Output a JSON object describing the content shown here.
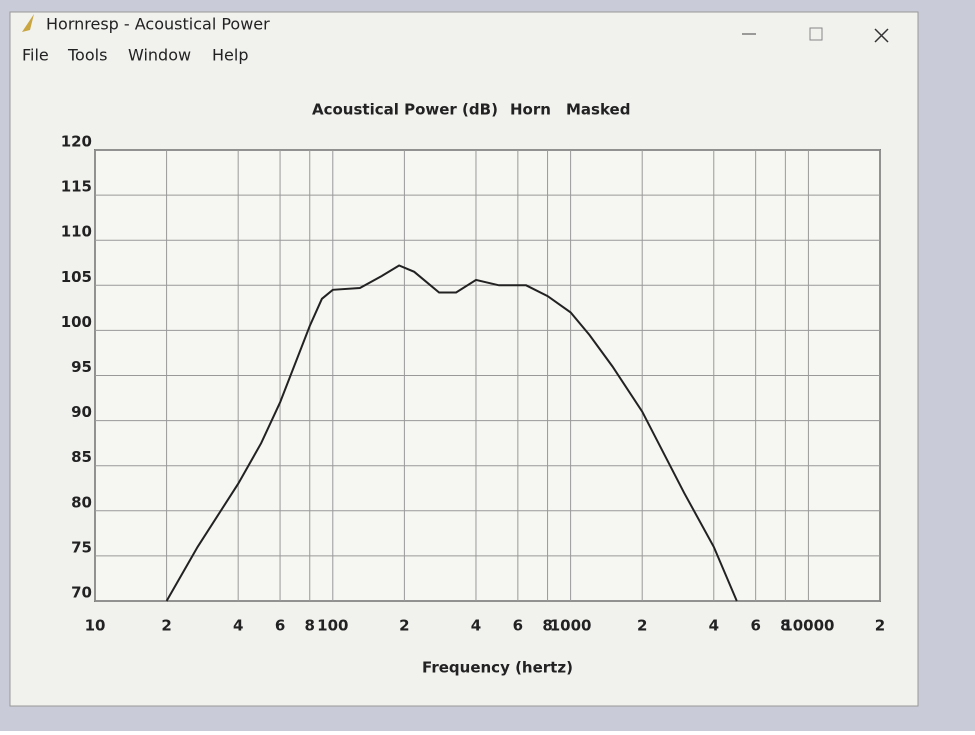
{
  "window": {
    "title": "Hornresp - Acoustical Power",
    "menu": [
      "File",
      "Tools",
      "Window",
      "Help"
    ]
  },
  "chart_data": {
    "type": "line",
    "title": [
      "Acoustical Power (dB)",
      "Horn",
      "Masked"
    ],
    "x_label": "Frequency (hertz)",
    "x": [
      20,
      27,
      40,
      50,
      60,
      80,
      90,
      100,
      130,
      160,
      190,
      220,
      280,
      330,
      400,
      500,
      650,
      800,
      1000,
      1200,
      1500,
      2000,
      3000,
      4000,
      5000
    ],
    "values": [
      70,
      76,
      83,
      87.5,
      92,
      100.5,
      103.5,
      104.5,
      104.7,
      106,
      107.2,
      106.5,
      104.2,
      104.2,
      105.6,
      105,
      105,
      103.8,
      102,
      99.5,
      96,
      91,
      82,
      76,
      70
    ],
    "color": "#222222",
    "x_scale": "log",
    "xlim": [
      10,
      20000
    ],
    "xticks": [
      10,
      {
        "value": 20,
        "label": "2"
      },
      {
        "value": 40,
        "label": "4"
      },
      {
        "value": 60,
        "label": "6"
      },
      {
        "value": 80,
        "label": "8"
      },
      100,
      {
        "value": 200,
        "label": "2"
      },
      {
        "value": 400,
        "label": "4"
      },
      {
        "value": 600,
        "label": "6"
      },
      {
        "value": 800,
        "label": "8"
      },
      1000,
      {
        "value": 2000,
        "label": "2"
      },
      {
        "value": 4000,
        "label": "4"
      },
      {
        "value": 6000,
        "label": "6"
      },
      {
        "value": 8000,
        "label": "8"
      },
      10000,
      {
        "value": 20000,
        "label": "2"
      }
    ],
    "ylim": [
      70,
      120
    ],
    "yticks": [
      70,
      75,
      80,
      85,
      90,
      95,
      100,
      105,
      110,
      115,
      120
    ],
    "grid": true
  }
}
